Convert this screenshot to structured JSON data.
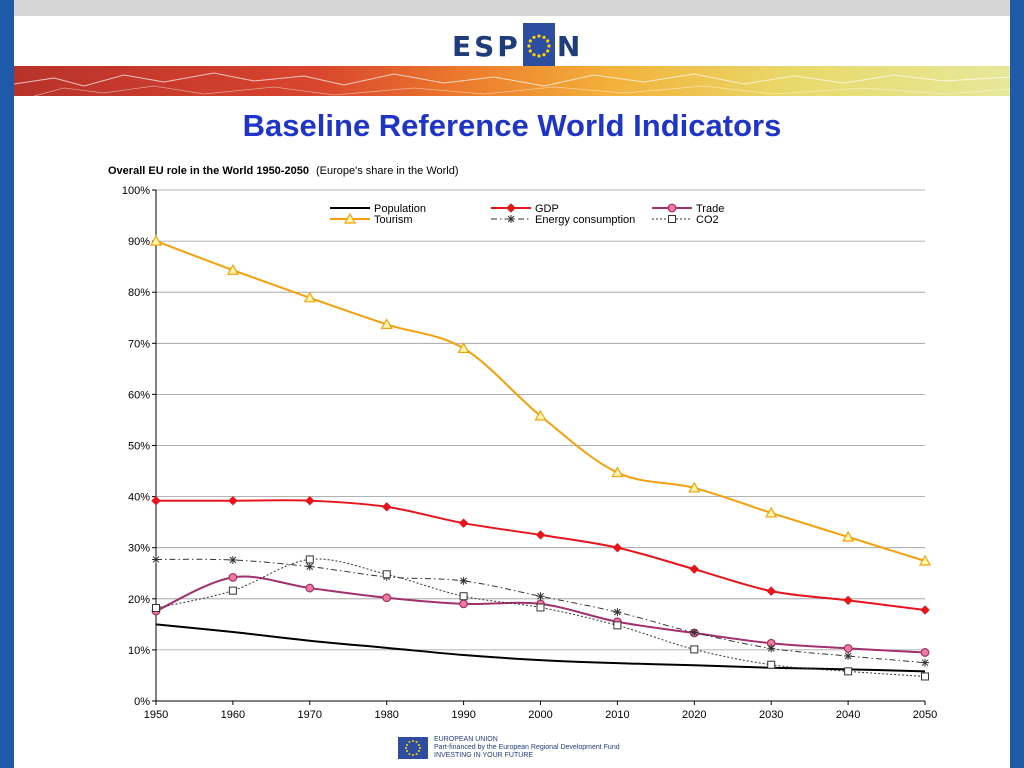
{
  "header": {
    "logo_text_left": "ESP",
    "logo_text_right": "N",
    "colors": {
      "logo_text": "#1f3d7a",
      "flag_bg": "#2d4ea0",
      "stars": "#ffd400"
    }
  },
  "slide_title": "Baseline Reference World Indicators",
  "chart_data": {
    "type": "line",
    "title": "Overall EU role in the World 1950-2050",
    "subtitle": "(Europe's share in the World)",
    "xlabel": "",
    "ylabel": "",
    "x": [
      1950,
      1960,
      1970,
      1980,
      1990,
      2000,
      2010,
      2020,
      2030,
      2040,
      2050
    ],
    "xlim": [
      1950,
      2050
    ],
    "ylim": [
      0,
      1
    ],
    "y_ticks": [
      "0%",
      "10%",
      "20%",
      "30%",
      "40%",
      "50%",
      "60%",
      "70%",
      "80%",
      "90%",
      "100%"
    ],
    "grid": true,
    "legend_position": "top",
    "series": [
      {
        "name": "Population",
        "color": "#000000",
        "marker": "none",
        "dash": "solid",
        "values": [
          0.15,
          0.135,
          0.118,
          0.104,
          0.09,
          0.08,
          0.074,
          0.07,
          0.065,
          0.062,
          0.058
        ]
      },
      {
        "name": "GDP",
        "color": "#e8141b",
        "marker": "diamond",
        "dash": "solid",
        "values": [
          0.392,
          0.392,
          0.392,
          0.38,
          0.348,
          0.325,
          0.3,
          0.258,
          0.215,
          0.197,
          0.178
        ]
      },
      {
        "name": "Trade",
        "color": "#a0306e",
        "marker": "circle",
        "dash": "solid",
        "values": [
          0.176,
          0.242,
          0.221,
          0.202,
          0.19,
          0.19,
          0.155,
          0.133,
          0.113,
          0.103,
          0.095
        ]
      },
      {
        "name": "Tourism",
        "color": "#f5a00a",
        "marker": "triangle",
        "dash": "solid",
        "values": [
          0.9,
          0.843,
          0.789,
          0.737,
          0.69,
          0.558,
          0.447,
          0.417,
          0.368,
          0.321,
          0.274
        ]
      },
      {
        "name": "Energy consumption",
        "color": "#333333",
        "marker": "star",
        "dash": "dashdot",
        "values": [
          0.277,
          0.276,
          0.263,
          0.243,
          0.235,
          0.205,
          0.174,
          0.134,
          0.103,
          0.088,
          0.075
        ]
      },
      {
        "name": "CO2",
        "color": "#333333",
        "marker": "square",
        "dash": "dotted",
        "values": [
          0.182,
          0.216,
          0.277,
          0.248,
          0.205,
          0.183,
          0.148,
          0.101,
          0.071,
          0.058,
          0.048
        ]
      }
    ]
  },
  "footer": {
    "line1": "EUROPEAN UNION",
    "line2": "Part-financed by the European Regional Development Fund",
    "line3": "INVESTING IN YOUR FUTURE"
  }
}
